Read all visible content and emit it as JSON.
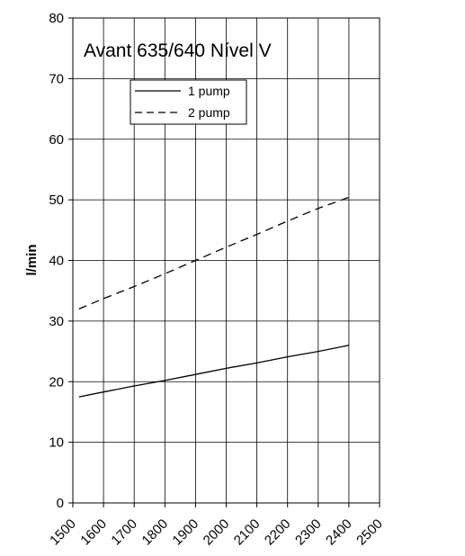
{
  "chart_data": {
    "type": "line",
    "title": "Avant 635/640 Nível V",
    "xlabel": "",
    "ylabel": "l/min",
    "xlim": [
      1500,
      2500
    ],
    "ylim": [
      0,
      80
    ],
    "x_ticks": [
      "1500",
      "1600",
      "1700",
      "1800",
      "1900",
      "2000",
      "2100",
      "2200",
      "2300",
      "2400",
      "2500"
    ],
    "y_ticks": [
      "0",
      "10",
      "20",
      "30",
      "40",
      "50",
      "60",
      "70",
      "80"
    ],
    "grid": true,
    "legend_position": "top-left",
    "series": [
      {
        "name": "1 pump",
        "style": "solid",
        "color": "#000000",
        "x": [
          1520,
          1600,
          1700,
          1800,
          1900,
          2000,
          2100,
          2200,
          2300,
          2400
        ],
        "y": [
          17.5,
          18.3,
          19.3,
          20.2,
          21.2,
          22.2,
          23.1,
          24.1,
          25.0,
          26.0
        ]
      },
      {
        "name": "2 pump",
        "style": "dashed",
        "color": "#000000",
        "x": [
          1520,
          1600,
          1700,
          1800,
          1900,
          2000,
          2100,
          2200,
          2300,
          2400
        ],
        "y": [
          32.0,
          33.7,
          35.7,
          37.8,
          40.0,
          42.2,
          44.3,
          46.5,
          48.6,
          50.4
        ]
      }
    ]
  }
}
